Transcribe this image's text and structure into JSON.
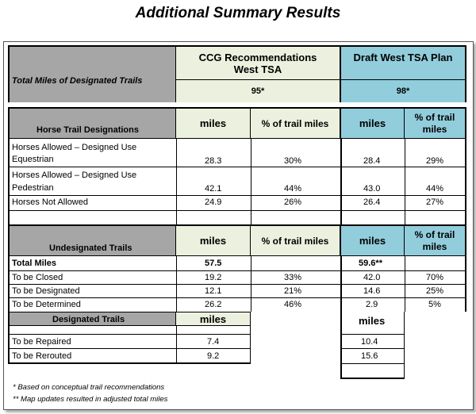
{
  "title": "Additional Summary Results",
  "header": {
    "ccg_title_line1": "CCG Recommendations",
    "ccg_title_line2": "West TSA",
    "draft_title": "Draft West TSA Plan",
    "total_miles_label": "Total Miles of  Designated Trails",
    "ccg_total": "95*",
    "draft_total": "98*"
  },
  "horse": {
    "section_label": "Horse Trail Designations",
    "col_miles": "miles",
    "col_pct": "% of trail miles",
    "col_miles_draft": "miles",
    "col_pct_draft_line1": "% of trail",
    "col_pct_draft_line2": "miles",
    "rows": [
      {
        "label_line1": "Horses Allowed – Designed Use",
        "label_line2": "Equestrian",
        "ccg_miles": "28.3",
        "ccg_pct": "30%",
        "draft_miles": "28.4",
        "draft_pct": "29%"
      },
      {
        "label_line1": "Horses Allowed – Designed Use",
        "label_line2": "Pedestrian",
        "ccg_miles": "42.1",
        "ccg_pct": "44%",
        "draft_miles": "43.0",
        "draft_pct": "44%"
      },
      {
        "label_line1": "Horses Not Allowed",
        "label_line2": "",
        "ccg_miles": "24.9",
        "ccg_pct": "26%",
        "draft_miles": "26.4",
        "draft_pct": "27%"
      }
    ]
  },
  "undesignated": {
    "section_label": "Undesignated  Trails",
    "col_miles": "miles",
    "col_pct": "% of trail miles",
    "col_miles_draft": "miles",
    "col_pct_draft_line1": "% of trail",
    "col_pct_draft_line2": "miles",
    "rows": [
      {
        "label": "Total Miles",
        "ccg_miles": "57.5",
        "ccg_pct": "",
        "draft_miles": "59.6**",
        "draft_pct": ""
      },
      {
        "label": "To be Closed",
        "ccg_miles": "19.2",
        "ccg_pct": "33%",
        "draft_miles": "42.0",
        "draft_pct": "70%"
      },
      {
        "label": "To be Designated",
        "ccg_miles": "12.1",
        "ccg_pct": "21%",
        "draft_miles": "14.6",
        "draft_pct": "25%"
      },
      {
        "label": "To be Determined",
        "ccg_miles": "26.2",
        "ccg_pct": "46%",
        "draft_miles": "2.9",
        "draft_pct": "5%"
      }
    ]
  },
  "designated": {
    "section_label": "Designated Trails",
    "col_miles": "miles",
    "col_miles_draft": "miles",
    "rows": [
      {
        "label": "To be Repaired",
        "ccg_miles": "7.4",
        "draft_miles": "10.4"
      },
      {
        "label": "To be Rerouted",
        "ccg_miles": "9.2",
        "draft_miles": "15.6"
      }
    ]
  },
  "footnotes": {
    "note1": "*  Based on conceptual trail recommendations",
    "note2": "** Map updates resulted in adjusted total miles"
  }
}
